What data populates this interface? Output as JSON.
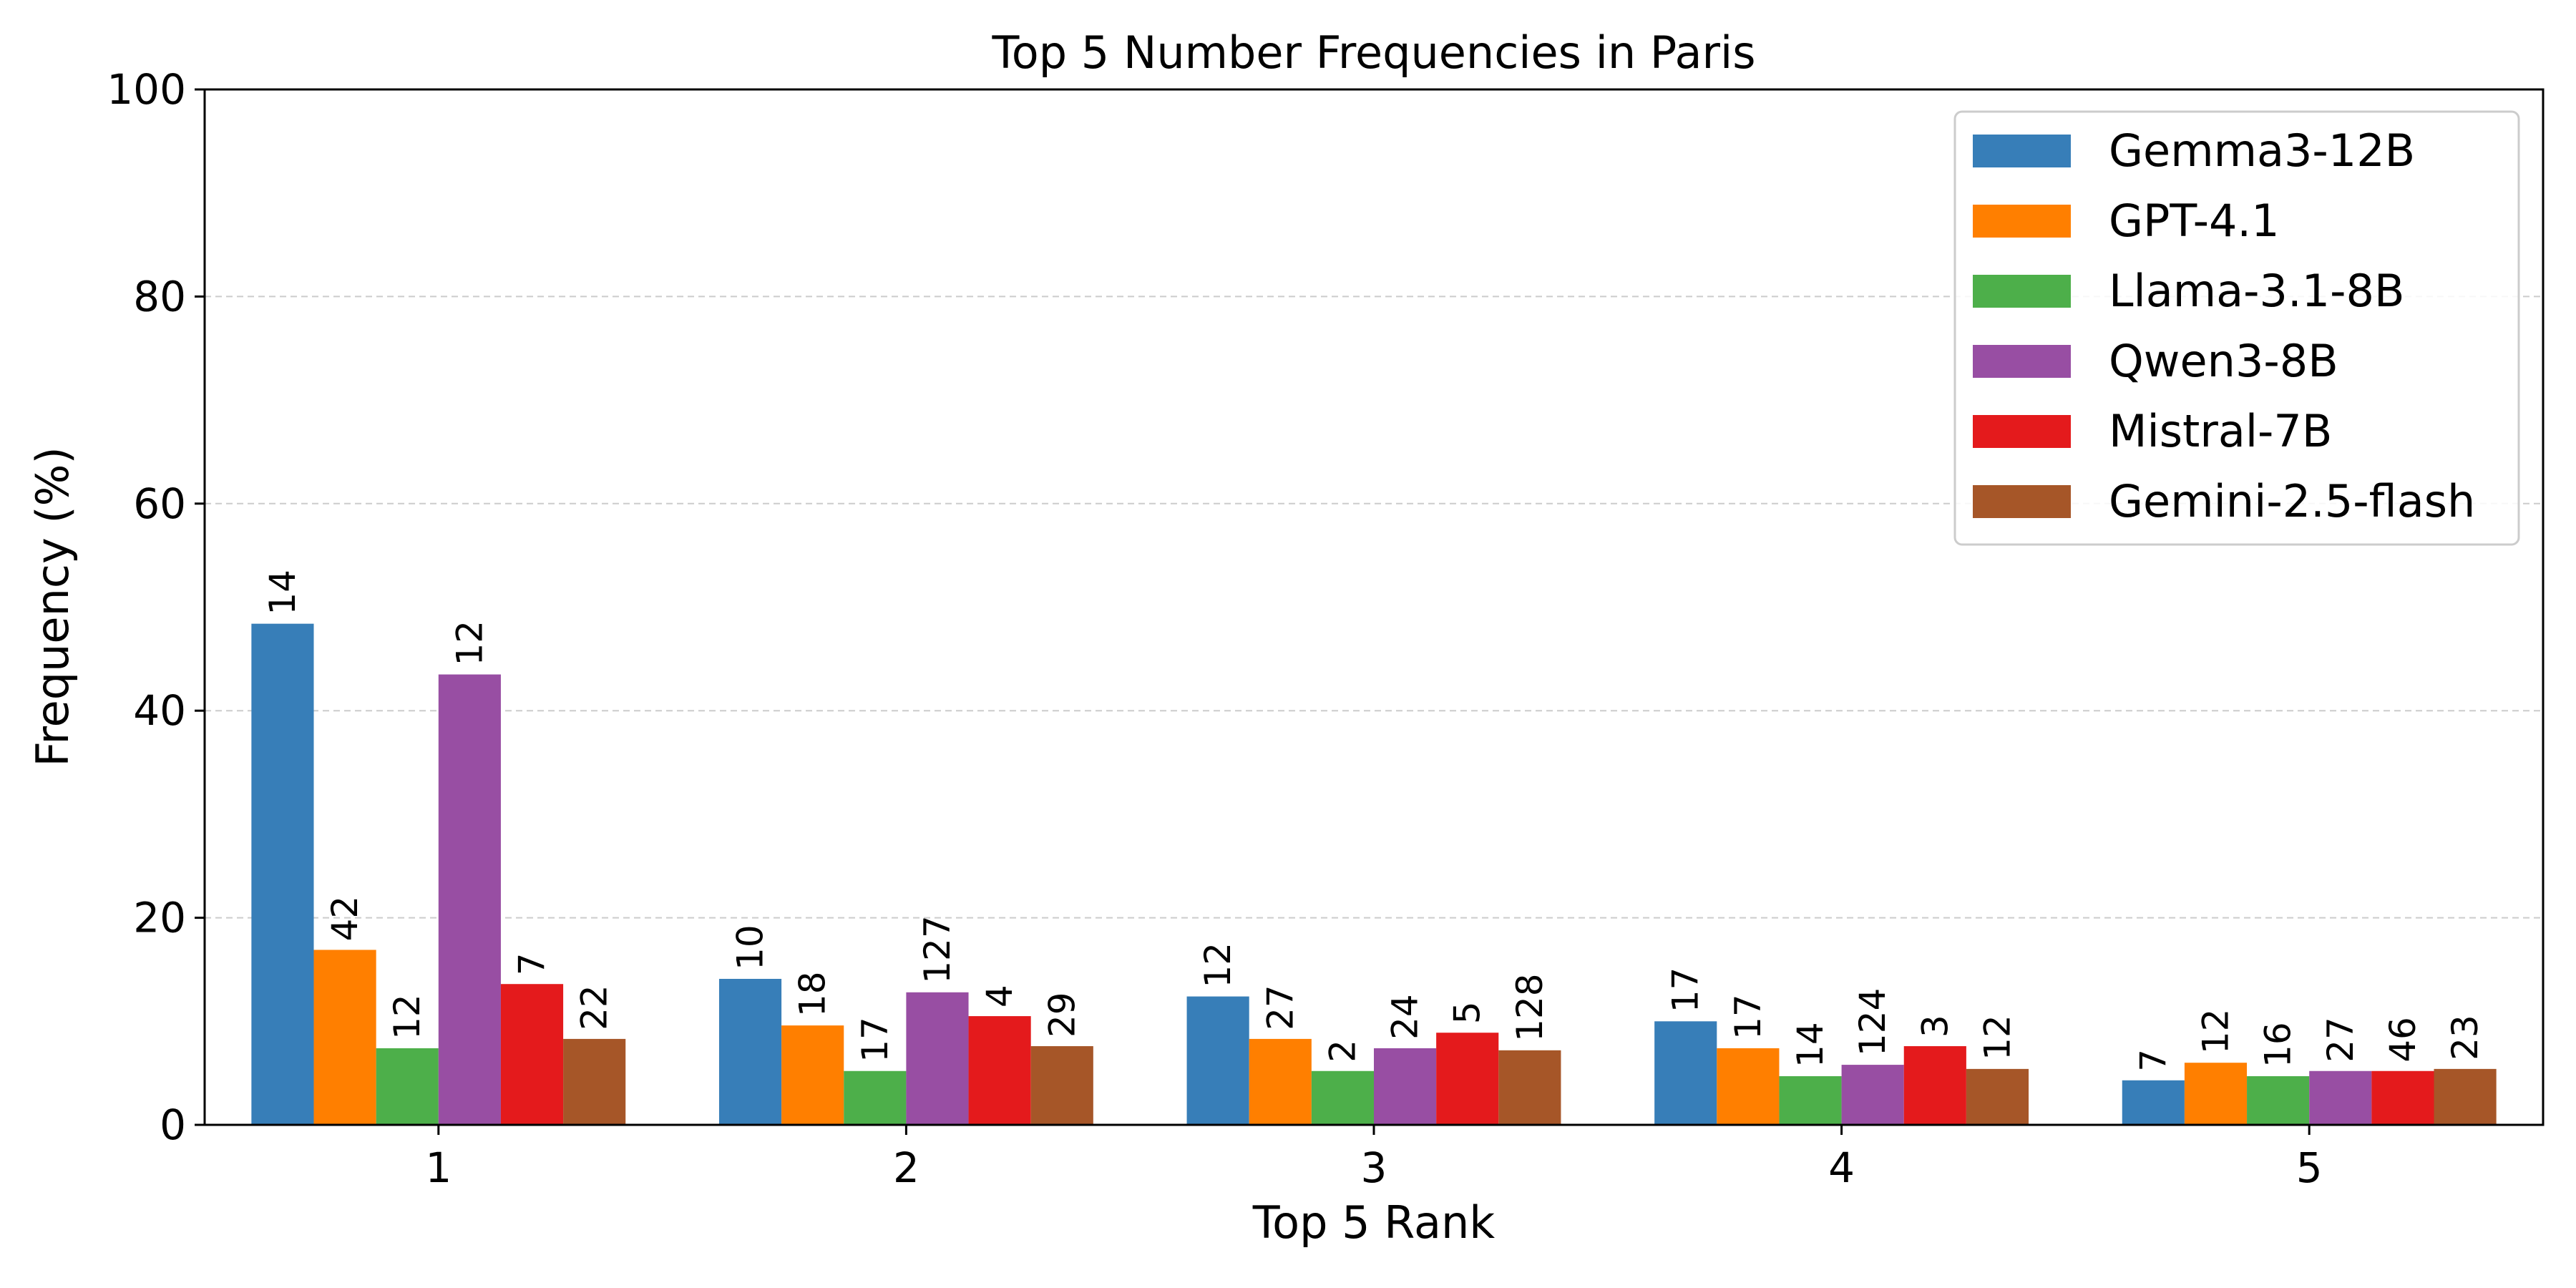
{
  "chart_data": {
    "type": "bar",
    "title": "Top 5 Number Frequencies in Paris",
    "xlabel": "Top 5 Rank",
    "ylabel": "Frequency (%)",
    "ylim": [
      0,
      100
    ],
    "yticks": [
      0,
      20,
      40,
      60,
      80,
      100
    ],
    "grid": "horizontal dashed",
    "legend_position": "top-right",
    "categories": [
      "1",
      "2",
      "3",
      "4",
      "5"
    ],
    "series": [
      {
        "name": "Gemma3-12B",
        "color": "#377eb8",
        "values": [
          48.4,
          14.1,
          12.4,
          10.0,
          4.3
        ],
        "labels": [
          "14",
          "10",
          "12",
          "17",
          "7"
        ]
      },
      {
        "name": "GPT-4.1",
        "color": "#ff7f00",
        "values": [
          16.9,
          9.6,
          8.3,
          7.4,
          6.0
        ],
        "labels": [
          "42",
          "18",
          "27",
          "17",
          "12"
        ]
      },
      {
        "name": "Llama-3.1-8B",
        "color": "#4daf4a",
        "values": [
          7.4,
          5.2,
          5.2,
          4.7,
          4.7
        ],
        "labels": [
          "12",
          "17",
          "2",
          "14",
          "16"
        ]
      },
      {
        "name": "Qwen3-8B",
        "color": "#984ea3",
        "values": [
          43.5,
          12.8,
          7.4,
          5.8,
          5.2
        ],
        "labels": [
          "12",
          "127",
          "24",
          "124",
          "27"
        ]
      },
      {
        "name": "Mistral-7B",
        "color": "#e41a1c",
        "values": [
          13.6,
          10.5,
          8.9,
          7.6,
          5.2
        ],
        "labels": [
          "7",
          "4",
          "5",
          "3",
          "46"
        ]
      },
      {
        "name": "Gemini-2.5-flash",
        "color": "#a65628",
        "values": [
          8.3,
          7.6,
          7.2,
          5.4,
          5.4
        ],
        "labels": [
          "22",
          "29",
          "128",
          "12",
          "23"
        ]
      }
    ]
  }
}
